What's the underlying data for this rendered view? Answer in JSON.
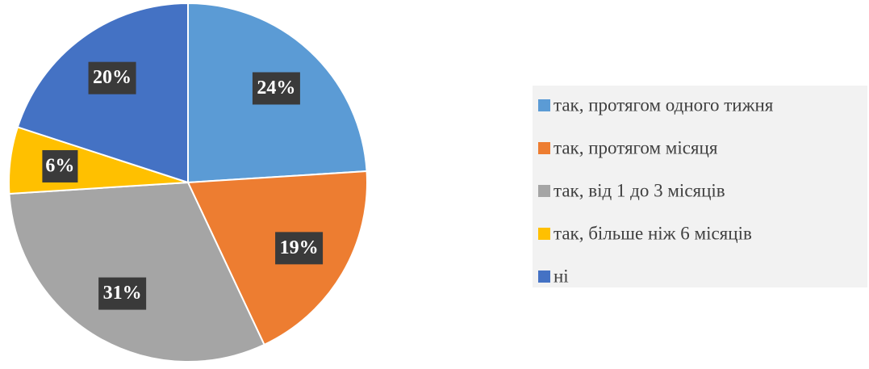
{
  "chart_data": {
    "type": "pie",
    "categories": [
      "так, протягом одного тижня",
      "так, протягом місяця",
      "так, від 1 до 3 місяців",
      "так, більше ніж 6 місяців",
      "ні"
    ],
    "values": [
      24,
      19,
      31,
      6,
      20
    ],
    "value_labels": [
      "24%",
      "19%",
      "31%",
      "6%",
      "20%"
    ],
    "colors": [
      "#5b9bd5",
      "#ed7d31",
      "#a5a5a5",
      "#ffc000",
      "#4472c4"
    ],
    "legend": "right"
  }
}
